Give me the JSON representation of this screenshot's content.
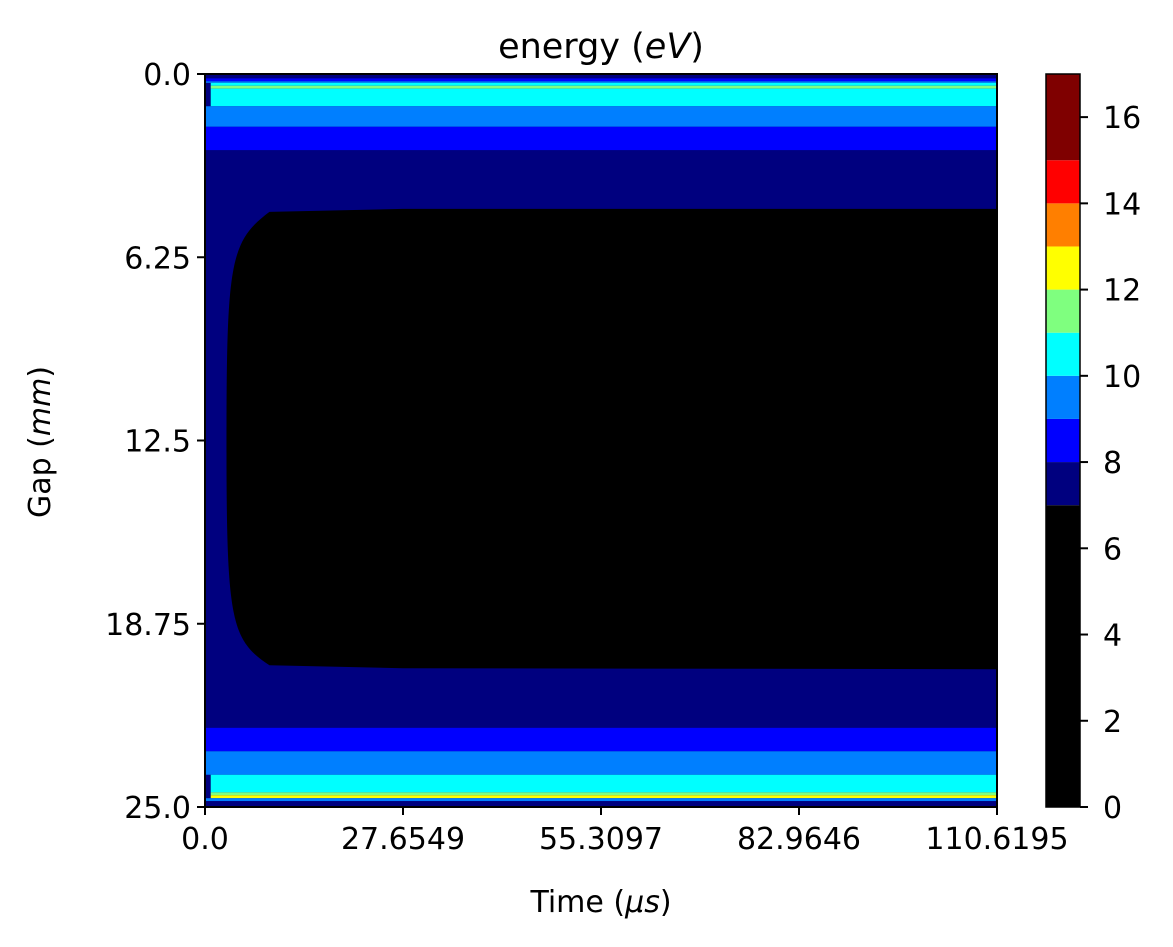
{
  "chart_data": {
    "type": "heatmap",
    "title": "energy (eV)",
    "title_plain": "energy (",
    "title_var": "eV",
    "title_close": ")",
    "xlabel": "Time (μs)",
    "xlabel_plain": "Time (",
    "xlabel_var": "μs",
    "xlabel_close": ")",
    "ylabel": "Gap (mm)",
    "ylabel_plain": "Gap (",
    "ylabel_var": "mm",
    "ylabel_close": ")",
    "xlim": [
      0.0,
      110.6195
    ],
    "ylim": [
      25.0,
      0.0
    ],
    "y_inverted": true,
    "x_ticks": [
      {
        "value": 0.0,
        "label": "0.0"
      },
      {
        "value": 27.6549,
        "label": "27.6549"
      },
      {
        "value": 55.3097,
        "label": "55.3097"
      },
      {
        "value": 82.9646,
        "label": "82.9646"
      },
      {
        "value": 110.6195,
        "label": "110.6195"
      }
    ],
    "y_ticks": [
      {
        "value": 0.0,
        "label": "0.0"
      },
      {
        "value": 6.25,
        "label": "6.25"
      },
      {
        "value": 12.5,
        "label": "12.5"
      },
      {
        "value": 18.75,
        "label": "18.75"
      },
      {
        "value": 25.0,
        "label": "25.0"
      }
    ],
    "colorbar": {
      "range": [
        0,
        17
      ],
      "levels": [
        0,
        7,
        8,
        9,
        10,
        11,
        12,
        13,
        14,
        15,
        16,
        17
      ],
      "colors": [
        "#000000",
        "#00007f",
        "#0000ff",
        "#007fff",
        "#00ffff",
        "#7fff7f",
        "#ffff00",
        "#ff7f00",
        "#ff0000",
        "#7f0000"
      ],
      "level_colors": [
        {
          "from": 0,
          "to": 7,
          "color": "#000000"
        },
        {
          "from": 7,
          "to": 8,
          "color": "#00007f"
        },
        {
          "from": 8,
          "to": 9,
          "color": "#0000ff"
        },
        {
          "from": 9,
          "to": 10,
          "color": "#007fff"
        },
        {
          "from": 10,
          "to": 11,
          "color": "#00ffff"
        },
        {
          "from": 11,
          "to": 12,
          "color": "#7fff7f"
        },
        {
          "from": 12,
          "to": 13,
          "color": "#ffff00"
        },
        {
          "from": 13,
          "to": 14,
          "color": "#ff7f00"
        },
        {
          "from": 14,
          "to": 15,
          "color": "#ff0000"
        },
        {
          "from": 15,
          "to": 17,
          "color": "#7f0000"
        }
      ],
      "ticks": [
        {
          "value": 0,
          "label": "0"
        },
        {
          "value": 2,
          "label": "2"
        },
        {
          "value": 4,
          "label": "4"
        },
        {
          "value": 6,
          "label": "6"
        },
        {
          "value": 8,
          "label": "8"
        },
        {
          "value": 10,
          "label": "10"
        },
        {
          "value": 12,
          "label": "12"
        },
        {
          "value": 14,
          "label": "14"
        },
        {
          "value": 16,
          "label": "16"
        }
      ]
    },
    "bands": [
      {
        "y0": 0.0,
        "y1": 0.15,
        "x_start": 0.0,
        "color": "#00007f"
      },
      {
        "y0": 0.15,
        "y1": 0.25,
        "x_start": 0.0,
        "color": "#0000ff"
      },
      {
        "y0": 0.25,
        "y1": 0.3,
        "x_start": 0.0,
        "color": "#007fff"
      },
      {
        "y0": 0.3,
        "y1": 0.4,
        "x_start": 0.8,
        "color": "#00ffff"
      },
      {
        "y0": 0.4,
        "y1": 0.5,
        "x_start": 0.8,
        "color": "#7fff7f"
      },
      {
        "y0": 0.5,
        "y1": 1.1,
        "x_start": 0.8,
        "color": "#00ffff"
      },
      {
        "y0": 1.1,
        "y1": 1.8,
        "x_start": 0.0,
        "color": "#007fff"
      },
      {
        "y0": 1.8,
        "y1": 2.6,
        "x_start": 0.0,
        "color": "#0000ff"
      },
      {
        "y0": 2.6,
        "y1": 22.3,
        "x_start": 0.0,
        "color": "#00007f"
      },
      {
        "y0": 22.3,
        "y1": 23.1,
        "x_start": 0.0,
        "color": "#0000ff"
      },
      {
        "y0": 23.1,
        "y1": 23.9,
        "x_start": 0.0,
        "color": "#007fff"
      },
      {
        "y0": 23.9,
        "y1": 24.5,
        "x_start": 0.8,
        "color": "#00ffff"
      },
      {
        "y0": 24.5,
        "y1": 24.6,
        "x_start": 0.8,
        "color": "#7fff7f"
      },
      {
        "y0": 24.6,
        "y1": 24.7,
        "x_start": 0.8,
        "color": "#ffff00"
      },
      {
        "y0": 24.7,
        "y1": 24.8,
        "x_start": 0.0,
        "color": "#007fff"
      },
      {
        "y0": 24.8,
        "y1": 25.0,
        "x_start": 0.0,
        "color": "#00007f"
      }
    ],
    "core_region": {
      "color": "#000000",
      "x_start": 3.0,
      "y_top_start": 5.7,
      "y_top_end": 4.6,
      "y_bottom_start": 19.3,
      "y_bottom_end": 20.3
    }
  }
}
